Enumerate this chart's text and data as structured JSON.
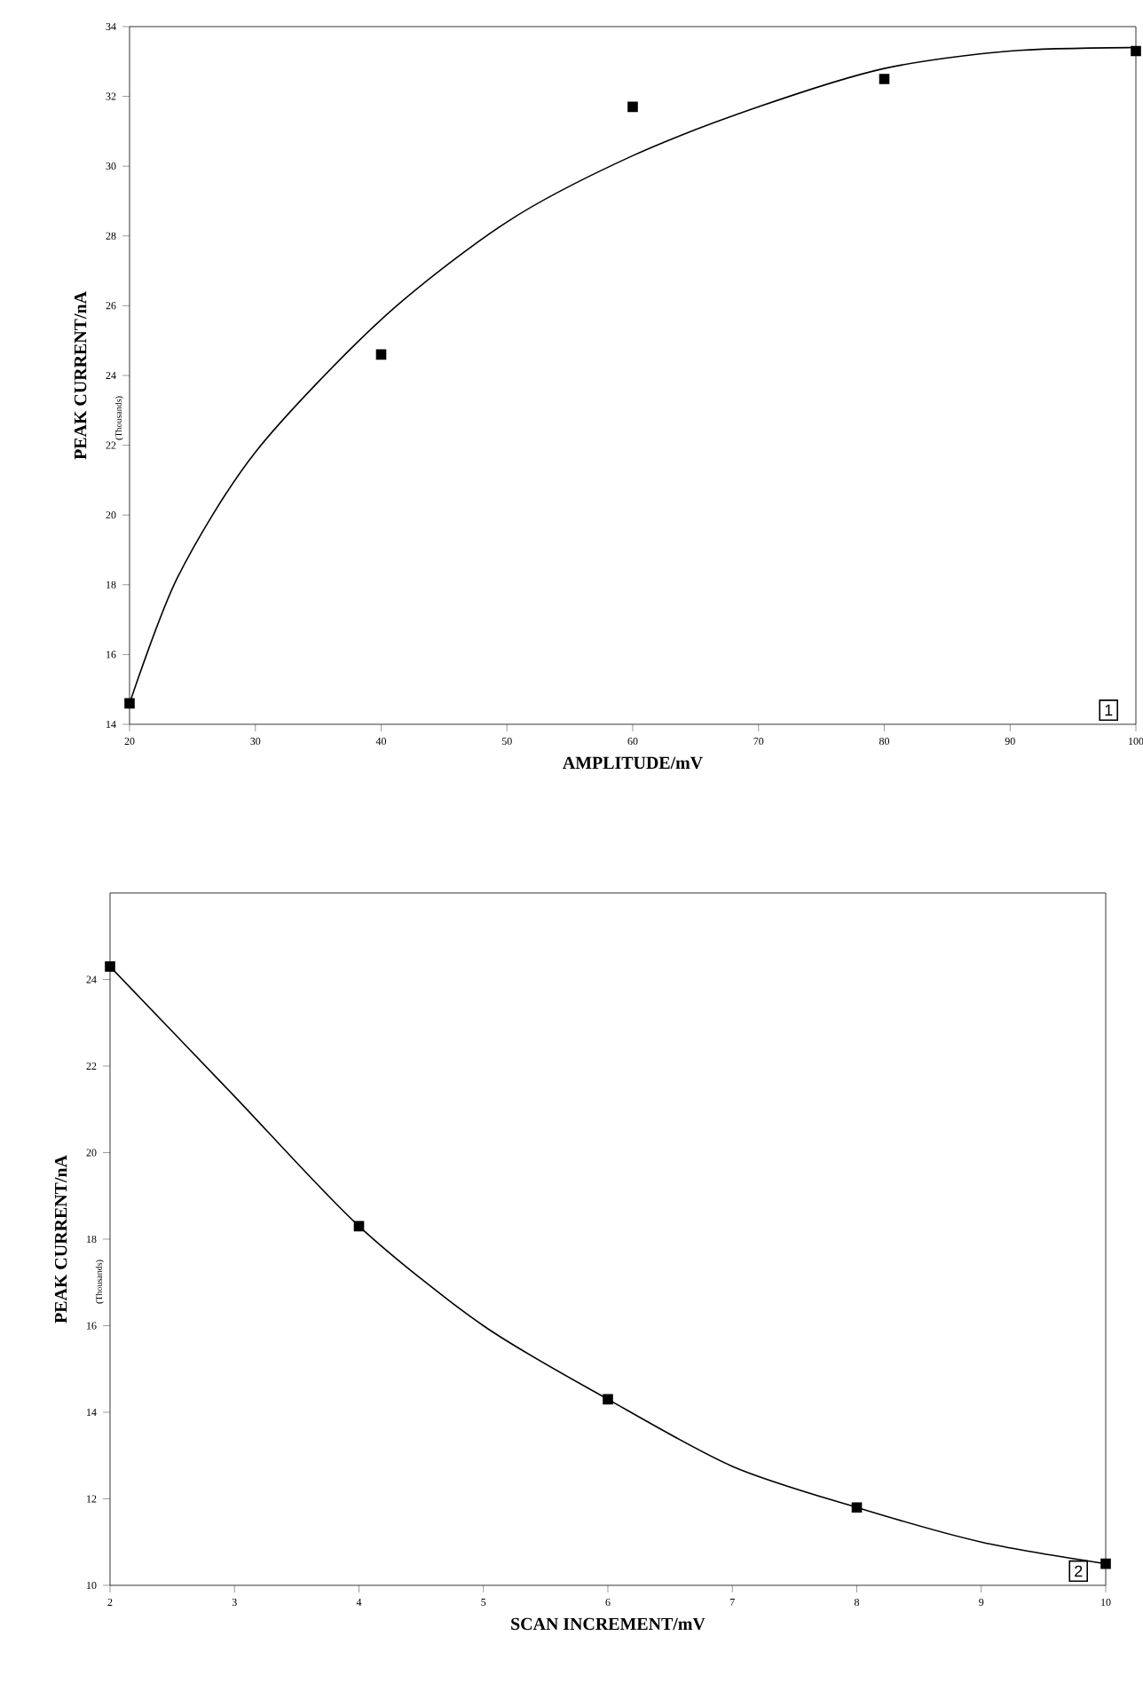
{
  "chart_data": [
    {
      "type": "scatter",
      "xlabel": "AMPLITUDE/mV",
      "ylabel": "PEAK CURRENT/nA",
      "annotations": [
        "(Thousands)",
        "1"
      ],
      "xlim": [
        20,
        100
      ],
      "ylim": [
        14,
        34
      ],
      "xticks": [
        20,
        30,
        40,
        50,
        60,
        70,
        80,
        90,
        100
      ],
      "yticks": [
        14,
        16,
        18,
        20,
        22,
        24,
        26,
        28,
        30,
        32,
        34
      ],
      "series": [
        {
          "marker": "square",
          "color": "#000000",
          "x": [
            20,
            40,
            60,
            80,
            100
          ],
          "values": [
            14.6,
            24.6,
            31.7,
            32.5,
            33.3
          ]
        },
        {
          "type": "line",
          "marker": "none",
          "line_style": "solid",
          "color": "#000000",
          "x": [
            20,
            23.8,
            30,
            40,
            50,
            60,
            70,
            80,
            90,
            100
          ],
          "values": [
            14.6,
            18.2,
            21.8,
            25.6,
            28.4,
            30.3,
            31.7,
            32.8,
            33.3,
            33.4
          ]
        }
      ]
    },
    {
      "type": "scatter",
      "xlabel": "SCAN INCREMENT/mV",
      "ylabel": "PEAK CURRENT/nA",
      "annotations": [
        "(Thousands)",
        "2"
      ],
      "xlim": [
        2,
        10
      ],
      "ylim": [
        10,
        26
      ],
      "xticks": [
        2,
        3,
        4,
        5,
        6,
        7,
        8,
        9,
        10
      ],
      "yticks": [
        10,
        12,
        14,
        16,
        18,
        20,
        22,
        24
      ],
      "series": [
        {
          "marker": "square",
          "color": "#000000",
          "x": [
            2,
            4,
            6,
            8,
            10
          ],
          "values": [
            24.3,
            18.3,
            14.3,
            11.8,
            10.5
          ]
        },
        {
          "type": "line",
          "marker": "none",
          "line_style": "solid",
          "color": "#000000",
          "x": [
            2,
            3,
            4,
            5,
            6,
            7,
            8,
            9,
            10
          ],
          "values": [
            24.3,
            21.3,
            18.3,
            16.0,
            14.3,
            12.75,
            11.8,
            11.0,
            10.5
          ]
        }
      ]
    }
  ]
}
